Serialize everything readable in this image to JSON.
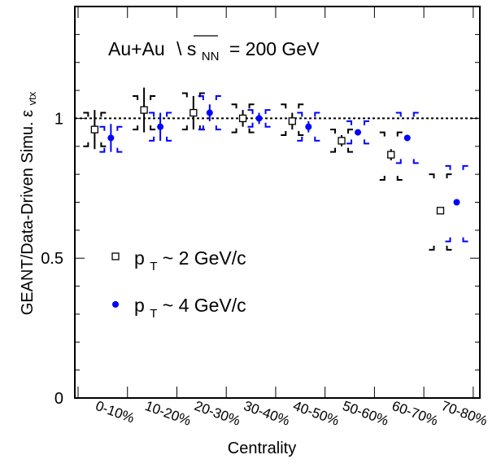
{
  "chart_data": {
    "type": "scatter",
    "title": "Au+Au √s_NN = 200 GeV",
    "title_parts": {
      "system": "Au+Au",
      "sqrt_s": "s",
      "sqrt_s_sub": "NN",
      "energy": "= 200 GeV"
    },
    "xlabel": "Centrality",
    "ylabel_main": "GEANT/Data-Driven Simu. ε",
    "ylabel_sub": "vtx",
    "categories": [
      "0-10%",
      "10-20%",
      "20-30%",
      "30-40%",
      "40-50%",
      "50-60%",
      "60-70%",
      "70-80%"
    ],
    "ylim": [
      0,
      1.4
    ],
    "yticks": [
      0,
      0.5,
      1
    ],
    "ytick_labels": [
      "0",
      "0.5",
      "1"
    ],
    "reference_line": 1,
    "grid": false,
    "legend_position": "left-middle",
    "series": [
      {
        "name": "p_T ~ 2 GeV/c",
        "label_parts": {
          "p": "p",
          "sub": "T",
          "rest": " ~ 2 GeV/c"
        },
        "marker": "open-square",
        "color": "#000000",
        "values": [
          0.96,
          1.03,
          1.02,
          1.0,
          0.99,
          0.92,
          0.87,
          0.67
        ],
        "stat_err": [
          0.07,
          0.08,
          0.06,
          0.03,
          0.03,
          0.02,
          0.02,
          0.01
        ],
        "sys_low": [
          0.9,
          0.96,
          0.96,
          0.95,
          0.94,
          0.88,
          0.78,
          0.53
        ],
        "sys_high": [
          1.02,
          1.08,
          1.09,
          1.05,
          1.05,
          0.96,
          0.95,
          0.8
        ]
      },
      {
        "name": "p_T ~ 4 GeV/c",
        "label_parts": {
          "p": "p",
          "sub": "T",
          "rest": " ~ 4 GeV/c"
        },
        "marker": "filled-circle",
        "color": "#0000ff",
        "values": [
          0.93,
          0.97,
          1.02,
          1.0,
          0.97,
          0.95,
          0.93,
          0.7
        ],
        "stat_err": [
          0.05,
          0.05,
          0.03,
          0.02,
          0.02,
          0.01,
          0.01,
          0.01
        ],
        "sys_low": [
          0.88,
          0.92,
          0.96,
          0.97,
          0.92,
          0.91,
          0.84,
          0.56
        ],
        "sys_high": [
          0.97,
          1.02,
          1.08,
          1.03,
          1.02,
          0.99,
          1.02,
          0.83
        ]
      }
    ]
  }
}
